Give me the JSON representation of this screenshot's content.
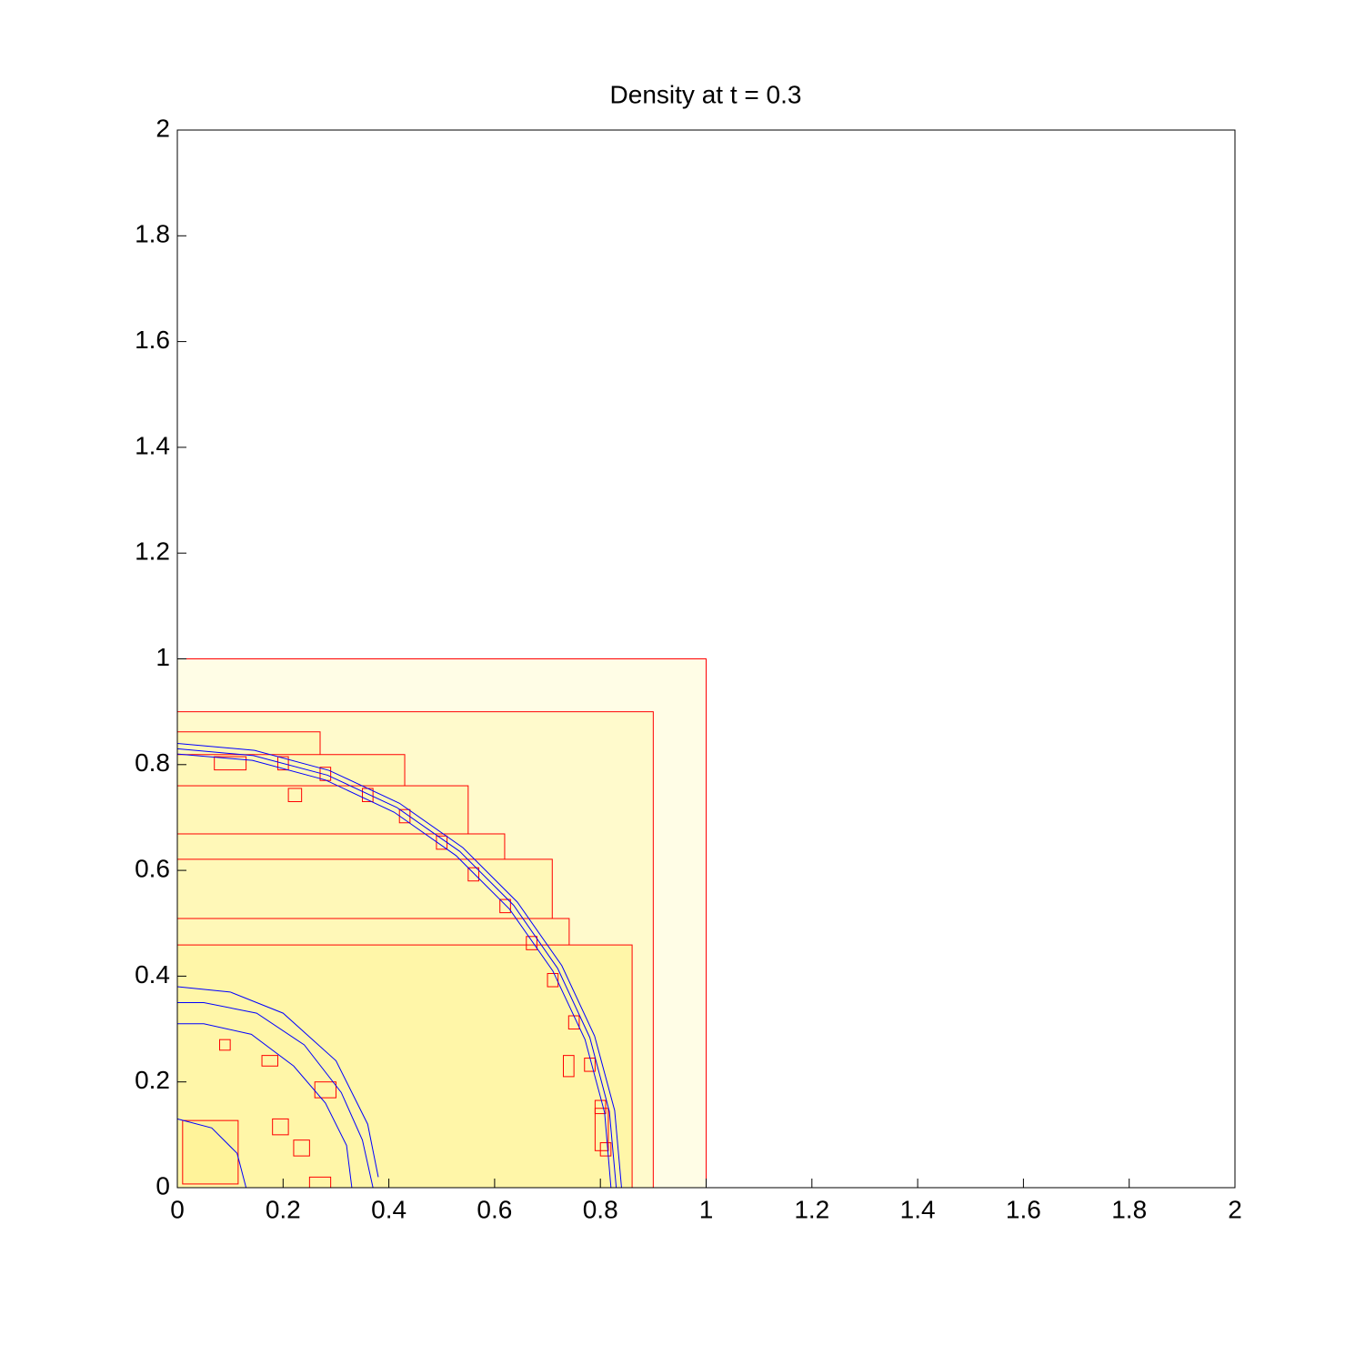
{
  "chart_data": {
    "type": "contour",
    "title": "Density at t = 0.3",
    "xlim": [
      0,
      2
    ],
    "ylim": [
      0,
      2
    ],
    "xticks": [
      0,
      0.2,
      0.4,
      0.6,
      0.8,
      1,
      1.2,
      1.4,
      1.6,
      1.8,
      2
    ],
    "yticks": [
      0,
      0.2,
      0.4,
      0.6,
      0.8,
      1,
      1.2,
      1.4,
      1.6,
      1.8,
      2
    ],
    "patch_color": "#ff0000",
    "contour_color": "#0000ff",
    "patches": [
      {
        "x": [
          0,
          1
        ],
        "y": [
          0,
          1
        ],
        "fill": "#fffde6"
      },
      {
        "x": [
          0,
          0.9
        ],
        "y": [
          0,
          0.9
        ],
        "fill": "#fffacc"
      },
      {
        "x": [
          0,
          0.27
        ],
        "y": [
          0,
          0.862
        ],
        "fill": "#fff8b8"
      },
      {
        "x": [
          0,
          0.43
        ],
        "y": [
          0,
          0.819
        ],
        "fill": "#fff8b8"
      },
      {
        "x": [
          0,
          0.55
        ],
        "y": [
          0,
          0.76
        ],
        "fill": "#fff8b8"
      },
      {
        "x": [
          0,
          0.619
        ],
        "y": [
          0,
          0.669
        ],
        "fill": "#fff8b8"
      },
      {
        "x": [
          0,
          0.709
        ],
        "y": [
          0,
          0.621
        ],
        "fill": "#fff8b8"
      },
      {
        "x": [
          0,
          0.741
        ],
        "y": [
          0,
          0.509
        ],
        "fill": "#fff8b8"
      },
      {
        "x": [
          0,
          0.86
        ],
        "y": [
          0,
          0.459
        ],
        "fill": "#fff6a8"
      },
      {
        "x": [
          0.01,
          0.115
        ],
        "y": [
          0.007,
          0.127
        ],
        "fill": "#fff39a"
      },
      {
        "x": [
          0.8,
          0.82
        ],
        "y": [
          0.06,
          0.085
        ]
      },
      {
        "x": [
          0.79,
          0.81
        ],
        "y": [
          0.14,
          0.165
        ]
      },
      {
        "x": [
          0.77,
          0.79
        ],
        "y": [
          0.22,
          0.245
        ]
      },
      {
        "x": [
          0.74,
          0.76
        ],
        "y": [
          0.3,
          0.325
        ]
      },
      {
        "x": [
          0.7,
          0.72
        ],
        "y": [
          0.38,
          0.405
        ]
      },
      {
        "x": [
          0.66,
          0.68
        ],
        "y": [
          0.45,
          0.475
        ]
      },
      {
        "x": [
          0.61,
          0.63
        ],
        "y": [
          0.52,
          0.545
        ]
      },
      {
        "x": [
          0.55,
          0.57
        ],
        "y": [
          0.58,
          0.605
        ]
      },
      {
        "x": [
          0.49,
          0.51
        ],
        "y": [
          0.64,
          0.665
        ]
      },
      {
        "x": [
          0.42,
          0.44
        ],
        "y": [
          0.69,
          0.715
        ]
      },
      {
        "x": [
          0.35,
          0.37
        ],
        "y": [
          0.73,
          0.755
        ]
      },
      {
        "x": [
          0.27,
          0.29
        ],
        "y": [
          0.77,
          0.795
        ]
      },
      {
        "x": [
          0.19,
          0.21
        ],
        "y": [
          0.79,
          0.815
        ]
      },
      {
        "x": [
          0.07,
          0.13
        ],
        "y": [
          0.79,
          0.815
        ]
      },
      {
        "x": [
          0.21,
          0.235
        ],
        "y": [
          0.73,
          0.755
        ]
      },
      {
        "x": [
          0.73,
          0.75
        ],
        "y": [
          0.21,
          0.25
        ]
      },
      {
        "x": [
          0.79,
          0.815
        ],
        "y": [
          0.07,
          0.15
        ]
      },
      {
        "x": [
          0.16,
          0.19
        ],
        "y": [
          0.23,
          0.25
        ]
      },
      {
        "x": [
          0.18,
          0.21
        ],
        "y": [
          0.1,
          0.13
        ]
      },
      {
        "x": [
          0.26,
          0.3
        ],
        "y": [
          0.17,
          0.2
        ]
      },
      {
        "x": [
          0.22,
          0.25
        ],
        "y": [
          0.06,
          0.09
        ]
      },
      {
        "x": [
          0.08,
          0.1
        ],
        "y": [
          0.26,
          0.28
        ]
      },
      {
        "x": [
          0.25,
          0.29
        ],
        "y": [
          0.0,
          0.02
        ]
      }
    ],
    "contours": [
      {
        "x": [
          0.83,
          0.817,
          0.78,
          0.719,
          0.636,
          0.534,
          0.415,
          0.284,
          0.144,
          0
        ],
        "y": [
          0,
          0.144,
          0.284,
          0.415,
          0.534,
          0.636,
          0.719,
          0.78,
          0.817,
          0.83
        ]
      },
      {
        "x": [
          0.84,
          0.827,
          0.789,
          0.727,
          0.643,
          0.54,
          0.42,
          0.287,
          0.146,
          0
        ],
        "y": [
          0,
          0.146,
          0.287,
          0.42,
          0.54,
          0.643,
          0.727,
          0.789,
          0.827,
          0.84
        ]
      },
      {
        "x": [
          0.82,
          0.808,
          0.771,
          0.71,
          0.628,
          0.527,
          0.41,
          0.28,
          0.142,
          0
        ],
        "y": [
          0,
          0.142,
          0.28,
          0.41,
          0.527,
          0.628,
          0.71,
          0.771,
          0.808,
          0.82
        ]
      },
      {
        "x": [
          0.13,
          0.113,
          0.065,
          0
        ],
        "y": [
          0,
          0.065,
          0.113,
          0.13
        ]
      },
      {
        "x": [
          0.37,
          0.35,
          0.31,
          0.24,
          0.15,
          0.05,
          0
        ],
        "y": [
          0,
          0.09,
          0.18,
          0.27,
          0.33,
          0.35,
          0.35
        ]
      },
      {
        "x": [
          0.33,
          0.32,
          0.28,
          0.22,
          0.14,
          0.05,
          0
        ],
        "y": [
          0,
          0.08,
          0.16,
          0.23,
          0.29,
          0.31,
          0.31
        ]
      },
      {
        "x": [
          0.38,
          0.36,
          0.3,
          0.2,
          0.1,
          0
        ],
        "y": [
          0.02,
          0.12,
          0.24,
          0.33,
          0.37,
          0.38
        ]
      }
    ]
  }
}
